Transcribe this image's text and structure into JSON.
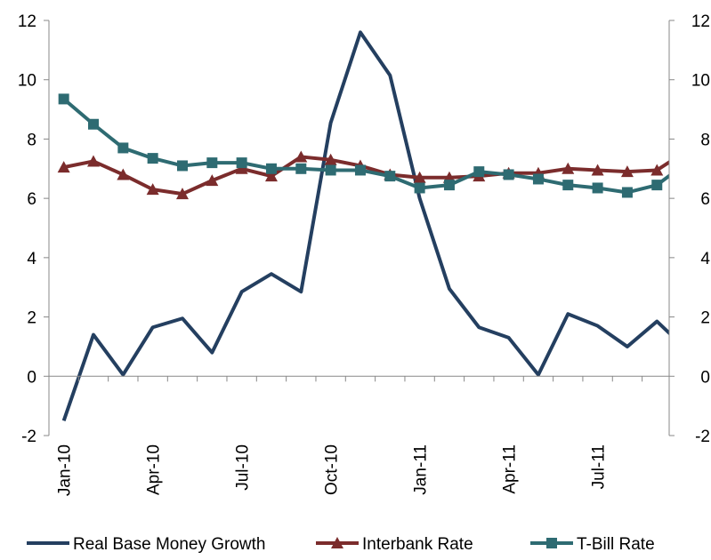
{
  "chart_data": {
    "type": "line",
    "categories": [
      "Jan-10",
      null,
      null,
      "Apr-10",
      null,
      null,
      "Jul-10",
      null,
      null,
      "Oct-10",
      null,
      null,
      "Jan-11",
      null,
      null,
      "Apr-11",
      null,
      null,
      "Jul-11",
      null,
      null,
      null
    ],
    "series": [
      {
        "name": "Real Base Money Growth",
        "color": "#243f60",
        "marker": "none",
        "values": [
          -1.5,
          1.4,
          0.05,
          1.65,
          1.95,
          0.8,
          2.85,
          3.45,
          2.85,
          8.55,
          11.6,
          10.15,
          6.0,
          2.95,
          1.65,
          1.3,
          0.05,
          2.1,
          1.7,
          1.0,
          1.85,
          0.9
        ]
      },
      {
        "name": "Interbank Rate",
        "color": "#7b2c2c",
        "marker": "triangle",
        "values": [
          7.05,
          7.25,
          6.8,
          6.3,
          6.15,
          6.6,
          7.0,
          6.75,
          7.4,
          7.3,
          7.1,
          6.8,
          6.7,
          6.7,
          6.75,
          6.85,
          6.85,
          7.0,
          6.95,
          6.9,
          6.95,
          7.6
        ]
      },
      {
        "name": "T-Bill Rate",
        "color": "#2e6b72",
        "marker": "square",
        "values": [
          9.35,
          8.5,
          7.7,
          7.35,
          7.1,
          7.2,
          7.2,
          7.0,
          7.0,
          6.95,
          6.95,
          6.75,
          6.35,
          6.45,
          6.9,
          6.8,
          6.65,
          6.45,
          6.35,
          6.2,
          6.45,
          7.2
        ]
      }
    ],
    "ylim": [
      -2,
      12
    ],
    "yticks": [
      -2,
      0,
      2,
      4,
      6,
      8,
      10,
      12
    ],
    "y2lim": [
      -2,
      12
    ],
    "y2ticks": [
      -2,
      0,
      2,
      4,
      6,
      8,
      10,
      12
    ],
    "legend": "bottom"
  }
}
